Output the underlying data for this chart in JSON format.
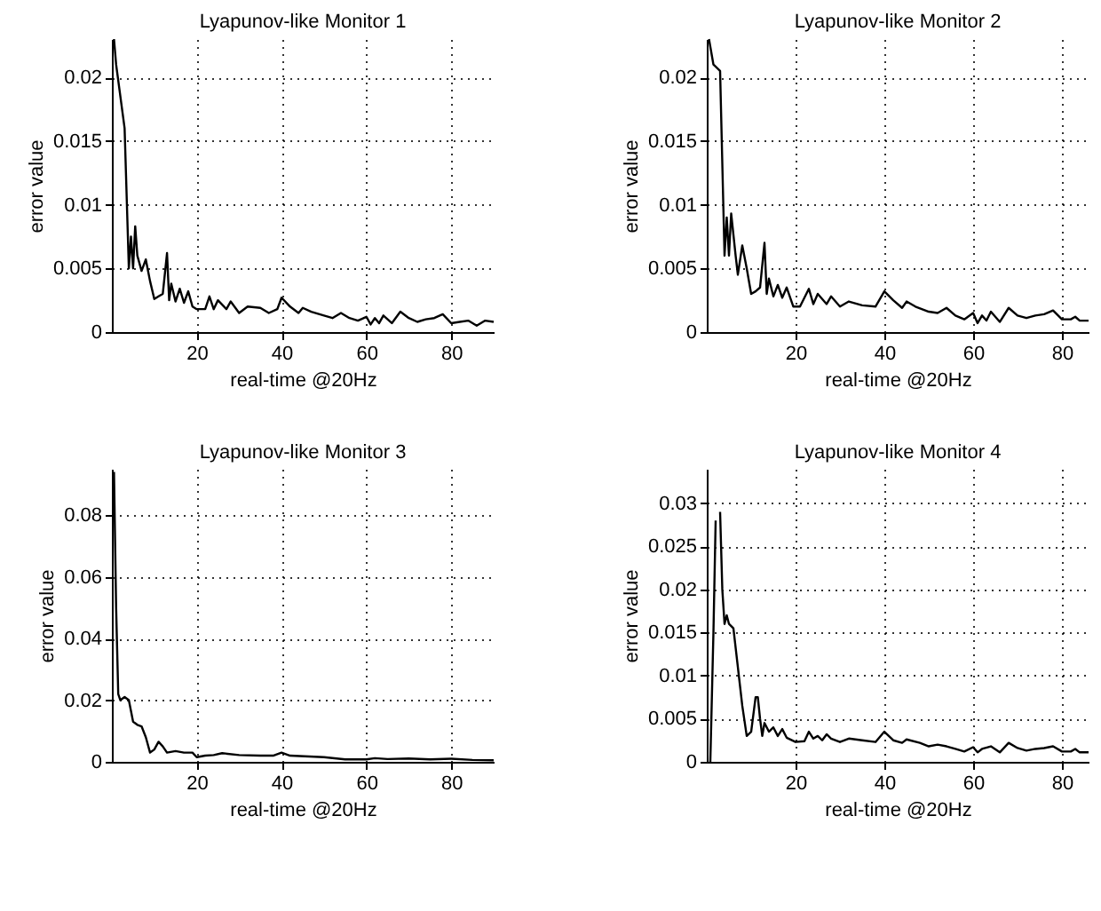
{
  "chart_data": [
    {
      "type": "line",
      "title": "Lyapunov-like Monitor 1",
      "xlabel": "real-time @20Hz",
      "ylabel": "error value",
      "xlim": [
        0,
        90
      ],
      "ylim": [
        0,
        0.023
      ],
      "xticks": [
        20,
        40,
        60,
        80
      ],
      "yticks": [
        0,
        0.005,
        0.01,
        0.015,
        0.02
      ],
      "grid": true,
      "line_style": "solid",
      "series": [
        {
          "color": "#000000",
          "x": [
            0.5,
            1,
            3,
            4,
            4.5,
            5,
            5.5,
            6,
            7,
            8,
            9,
            10,
            11,
            12,
            13,
            13.5,
            14,
            15,
            16,
            17,
            18,
            19,
            20,
            22,
            23,
            24,
            25,
            27,
            28,
            30,
            32,
            35,
            37,
            39,
            40,
            42,
            44,
            45,
            47,
            50,
            52,
            54,
            56,
            58,
            60,
            61,
            62,
            63,
            64,
            66,
            68,
            70,
            72,
            74,
            76,
            78,
            80,
            82,
            84,
            86,
            88,
            90
          ],
          "values": [
            0.023,
            0.021,
            0.016,
            0.005,
            0.0075,
            0.005,
            0.0083,
            0.006,
            0.0048,
            0.0057,
            0.004,
            0.0026,
            0.0028,
            0.003,
            0.0062,
            0.0025,
            0.0038,
            0.0024,
            0.0034,
            0.0023,
            0.0032,
            0.002,
            0.0018,
            0.0018,
            0.0028,
            0.0018,
            0.0025,
            0.0018,
            0.0024,
            0.0015,
            0.002,
            0.0019,
            0.0015,
            0.0018,
            0.0027,
            0.002,
            0.0015,
            0.0019,
            0.0016,
            0.0013,
            0.0011,
            0.0015,
            0.0011,
            0.0009,
            0.0012,
            0.0006,
            0.0011,
            0.0007,
            0.0013,
            0.0007,
            0.0016,
            0.0011,
            0.0008,
            0.001,
            0.0011,
            0.0014,
            0.0007,
            0.0008,
            0.0009,
            0.0005,
            0.0009,
            0.0008
          ]
        }
      ]
    },
    {
      "type": "line",
      "title": "Lyapunov-like Monitor 2",
      "xlabel": "real-time @20Hz",
      "ylabel": "error value",
      "xlim": [
        0,
        86
      ],
      "ylim": [
        0,
        0.023
      ],
      "xticks": [
        20,
        40,
        60,
        80
      ],
      "yticks": [
        0,
        0.005,
        0.01,
        0.015,
        0.02
      ],
      "grid": true,
      "line_style": "solid",
      "series": [
        {
          "color": "#000000",
          "x": [
            0.5,
            1.5,
            3,
            4,
            4.5,
            5,
            5.5,
            6.5,
            7,
            8,
            9,
            10,
            11,
            12,
            13,
            13.5,
            14,
            15,
            16,
            17,
            18,
            19.5,
            21,
            23,
            24,
            25,
            27,
            28,
            30,
            32,
            35,
            38,
            40,
            42,
            44,
            45,
            47,
            50,
            52,
            54,
            56,
            58,
            60,
            61,
            62,
            63,
            64,
            66,
            68,
            70,
            72,
            74,
            76,
            78,
            80,
            82,
            83,
            84,
            86
          ],
          "values": [
            0.023,
            0.021,
            0.0205,
            0.006,
            0.009,
            0.006,
            0.0093,
            0.006,
            0.0045,
            0.0068,
            0.005,
            0.003,
            0.0032,
            0.0035,
            0.007,
            0.003,
            0.0042,
            0.0028,
            0.0037,
            0.0027,
            0.0035,
            0.002,
            0.002,
            0.0034,
            0.0022,
            0.003,
            0.0022,
            0.0028,
            0.002,
            0.0024,
            0.0021,
            0.002,
            0.0032,
            0.0025,
            0.0019,
            0.0024,
            0.002,
            0.0016,
            0.0015,
            0.0019,
            0.0013,
            0.001,
            0.0015,
            0.0007,
            0.0013,
            0.0009,
            0.0016,
            0.0008,
            0.0019,
            0.0013,
            0.0011,
            0.0013,
            0.0014,
            0.0017,
            0.001,
            0.001,
            0.0012,
            0.0009,
            0.0009
          ]
        }
      ]
    },
    {
      "type": "line",
      "title": "Lyapunov-like Monitor 3",
      "xlabel": "real-time @20Hz",
      "ylabel": "error value",
      "xlim": [
        0,
        90
      ],
      "ylim": [
        0,
        0.095
      ],
      "xticks": [
        20,
        40,
        60,
        80
      ],
      "yticks": [
        0,
        0.02,
        0.04,
        0.06,
        0.08
      ],
      "grid": true,
      "line_style": "solid",
      "series": [
        {
          "color": "#000000",
          "x": [
            0.5,
            1,
            1.5,
            2,
            3,
            4,
            5,
            6,
            7,
            8,
            9,
            10,
            11,
            12,
            13,
            15,
            17,
            19,
            20,
            22,
            24,
            26,
            30,
            35,
            38,
            40,
            42,
            50,
            55,
            60,
            62,
            65,
            70,
            75,
            80,
            85,
            90
          ],
          "values": [
            0.094,
            0.05,
            0.022,
            0.02,
            0.021,
            0.02,
            0.013,
            0.012,
            0.0115,
            0.008,
            0.003,
            0.004,
            0.0065,
            0.005,
            0.003,
            0.0035,
            0.003,
            0.003,
            0.0015,
            0.002,
            0.0022,
            0.0028,
            0.0022,
            0.002,
            0.002,
            0.003,
            0.002,
            0.0015,
            0.0008,
            0.0008,
            0.0012,
            0.0009,
            0.0011,
            0.0008,
            0.001,
            0.0006,
            0.0005
          ]
        }
      ]
    },
    {
      "type": "line",
      "title": "Lyapunov-like Monitor 4",
      "xlabel": "real-time @20Hz",
      "ylabel": "error value",
      "xlim": [
        0,
        86
      ],
      "ylim": [
        0,
        0.034
      ],
      "xticks": [
        20,
        40,
        60,
        80
      ],
      "yticks": [
        0,
        0.005,
        0.01,
        0.015,
        0.02,
        0.025,
        0.03
      ],
      "grid": true,
      "line_style": "solid",
      "series": [
        {
          "color": "#000000",
          "x": [
            0.8,
            1.5,
            2,
            2.5,
            3,
            3.5,
            4,
            4.5,
            5,
            6,
            7,
            8,
            9,
            10,
            11,
            11.5,
            12,
            12.5,
            13,
            14,
            15,
            16,
            17,
            18,
            20,
            22,
            23,
            24,
            25,
            26,
            27,
            28,
            30,
            32,
            35,
            38,
            40,
            42,
            44,
            45,
            48,
            50,
            52,
            54,
            56,
            58,
            60,
            61,
            62,
            64,
            66,
            68,
            70,
            72,
            74,
            76,
            78,
            80,
            82,
            83,
            84,
            86
          ],
          "values": [
            0.0,
            0.015,
            0.028,
            null,
            0.029,
            0.02,
            0.016,
            0.017,
            0.016,
            0.0155,
            0.011,
            0.0065,
            0.003,
            0.0035,
            0.0075,
            0.0075,
            0.005,
            0.003,
            0.0045,
            0.0035,
            0.004,
            0.003,
            0.0038,
            0.0028,
            0.0023,
            0.0024,
            0.0035,
            0.0027,
            0.003,
            0.0025,
            0.0032,
            0.0027,
            0.0023,
            0.0027,
            0.0025,
            0.0023,
            0.0035,
            0.0025,
            0.0022,
            0.0026,
            0.0022,
            0.0018,
            0.002,
            0.0018,
            0.0015,
            0.0012,
            0.0017,
            0.0011,
            0.0015,
            0.0018,
            0.0011,
            0.0022,
            0.0016,
            0.0013,
            0.0015,
            0.0016,
            0.0018,
            0.0012,
            0.0012,
            0.0015,
            0.0011,
            0.0011
          ]
        }
      ]
    }
  ]
}
